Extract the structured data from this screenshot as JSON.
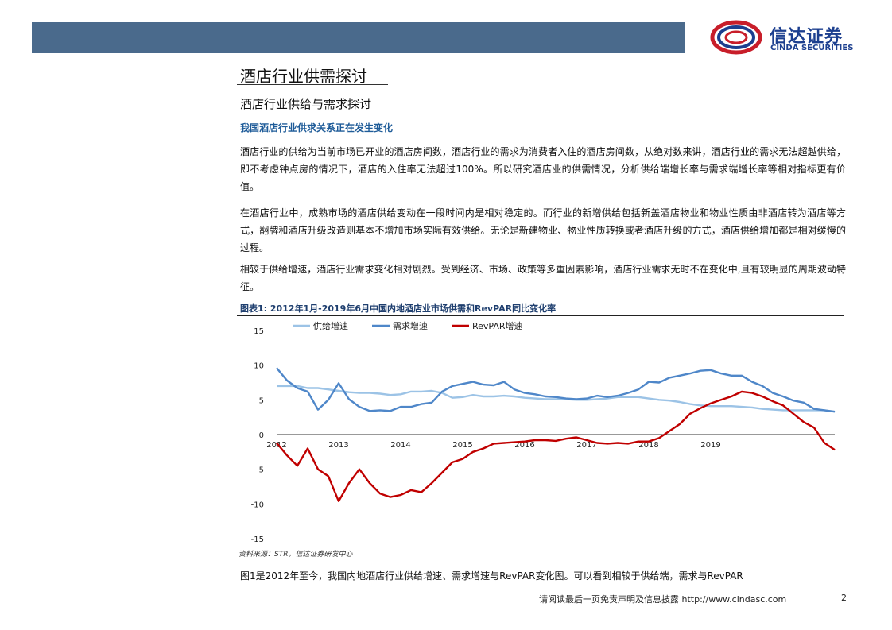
{
  "header": {
    "logo_cn": "信达证券",
    "logo_en": "CINDA SECURITIES"
  },
  "section_title": "酒店行业供需探讨",
  "subsection_title": "酒店行业供给与需求探讨",
  "subheading": "我国酒店行业供求关系正在发生变化",
  "paragraphs": [
    "酒店行业的供给为当前市场已开业的酒店房间数，酒店行业的需求为消费者入住的酒店房间数，从绝对数来讲，酒店行业的需求无法超越供给，即不考虑钟点房的情况下，酒店的入住率无法超过100%。所以研究酒店业的供需情况，分析供给端增长率与需求端增长率等相对指标更有价值。",
    "在酒店行业中，成熟市场的酒店供给变动在一段时间内是相对稳定的。而行业的新增供给包括新盖酒店物业和物业性质由非酒店转为酒店等方式，翻牌和酒店升级改造则基本不增加市场实际有效供给。无论是新建物业、物业性质转换或者酒店升级的方式，酒店供给增加都是相对缓慢的过程。",
    "相较于供给增速，酒店行业需求变化相对剧烈。受到经济、市场、政策等多重因素影响，酒店行业需求无时不在变化中,且有较明显的周期波动特征。"
  ],
  "figure": {
    "title": "图表1:  2012年1月-2019年6月中国内地酒店业市场供需和RevPAR同比变化率",
    "source": "资料来源：STR，信达证券研发中心"
  },
  "chart_data": {
    "type": "line",
    "x_start": "2012-01",
    "x_step": "2 months",
    "x_ticks": [
      "2012",
      "2013",
      "2014",
      "2015",
      "2016",
      "2017",
      "2018",
      "2019"
    ],
    "ylim": [
      -15,
      15
    ],
    "y_ticks": [
      15,
      10,
      5,
      0,
      -5,
      -10,
      -15
    ],
    "grid": false,
    "legend_position": "top-left",
    "series": [
      {
        "name": "供给增速",
        "color": "#9cc3e6",
        "values": [
          7.0,
          7.0,
          7.0,
          6.7,
          6.7,
          6.5,
          6.3,
          6.1,
          6.0,
          6.0,
          5.9,
          5.7,
          5.8,
          6.2,
          6.2,
          6.3,
          6.0,
          5.3,
          5.4,
          5.7,
          5.5,
          5.5,
          5.6,
          5.5,
          5.3,
          5.2,
          5.1,
          5.1,
          5.1,
          5.0,
          5.0,
          5.1,
          5.2,
          5.4,
          5.4,
          5.4,
          5.2,
          5.0,
          4.9,
          4.7,
          4.4,
          4.2,
          4.1,
          4.1,
          4.1,
          4.0,
          3.9,
          3.7,
          3.6,
          3.5,
          3.5,
          3.5,
          3.5,
          3.5,
          3.3
        ]
      },
      {
        "name": "需求增速",
        "color": "#4f87c9",
        "values": [
          9.6,
          7.8,
          6.7,
          6.2,
          3.6,
          5.0,
          7.4,
          5.1,
          4.0,
          3.4,
          3.5,
          3.4,
          4.0,
          4.0,
          4.4,
          4.6,
          6.2,
          7.0,
          7.3,
          7.6,
          7.2,
          7.1,
          7.6,
          6.5,
          6.0,
          5.8,
          5.5,
          5.4,
          5.2,
          5.1,
          5.2,
          5.6,
          5.4,
          5.6,
          6.0,
          6.5,
          7.6,
          7.5,
          8.2,
          8.5,
          8.8,
          9.2,
          9.3,
          8.8,
          8.5,
          8.5,
          7.6,
          7.0,
          6.0,
          5.5,
          4.9,
          4.6,
          3.7,
          3.5,
          3.3
        ]
      },
      {
        "name": "RevPAR增速",
        "color": "#c00000",
        "values": [
          -1.2,
          -3.0,
          -4.5,
          -2.0,
          -5.0,
          -6.0,
          -9.6,
          -7.0,
          -5.0,
          -7.0,
          -8.5,
          -9.0,
          -8.7,
          -8.0,
          -8.3,
          -7.0,
          -5.5,
          -4.0,
          -3.5,
          -2.5,
          -2.0,
          -1.3,
          -1.2,
          -1.1,
          -1.0,
          -0.8,
          -0.8,
          -0.9,
          -0.6,
          -0.4,
          -0.8,
          -1.2,
          -1.3,
          -1.2,
          -1.3,
          -1.0,
          -1.0,
          -0.5,
          0.5,
          1.5,
          3.0,
          3.8,
          4.5,
          5.0,
          5.5,
          6.2,
          6.0,
          5.5,
          4.8,
          4.2,
          3.0,
          1.8,
          1.0,
          -1.2,
          -2.2
        ]
      }
    ]
  },
  "bottom_text": "图1是2012年至今，我国内地酒店行业供给增速、需求增速与RevPAR变化图。可以看到相较于供给端，需求与RevPAR",
  "footer": {
    "note": "请阅读最后一页免责声明及信息披露 http://www.cindasc.com",
    "page": "2"
  }
}
